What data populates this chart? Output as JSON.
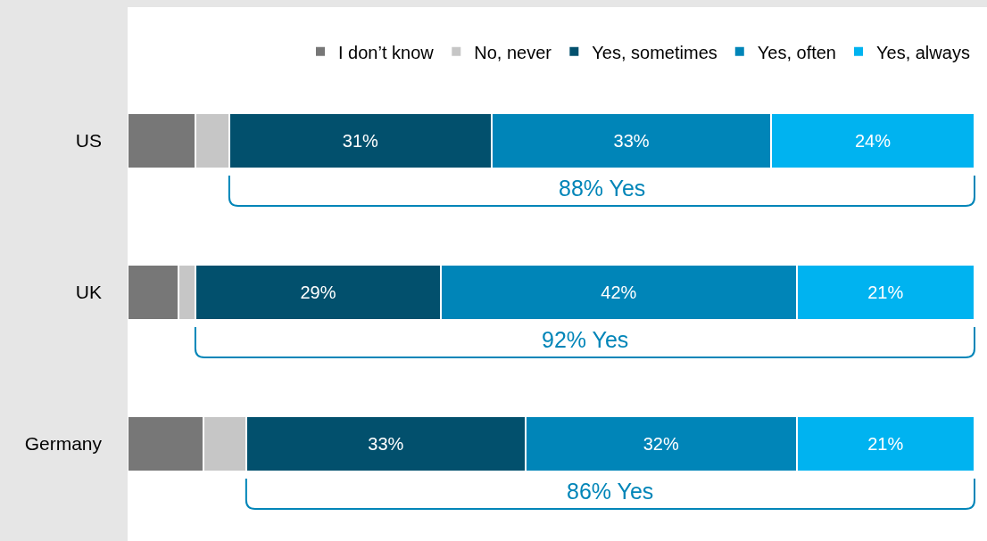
{
  "chart_data": {
    "type": "bar",
    "orientation": "horizontal",
    "stacked": true,
    "legend": "top right",
    "categories": [
      "US",
      "UK",
      "Germany"
    ],
    "series": [
      {
        "name": "I don’t know",
        "color": "#777777",
        "values": [
          8,
          6,
          9
        ],
        "value_labels": [
          null,
          null,
          null
        ]
      },
      {
        "name": "No, never",
        "color": "#c6c6c6",
        "values": [
          4,
          2,
          5
        ],
        "value_labels": [
          null,
          null,
          null
        ]
      },
      {
        "name": "Yes, sometimes",
        "color": "#02506d",
        "values": [
          31,
          29,
          33
        ],
        "value_labels": [
          "31%",
          "29%",
          "33%"
        ]
      },
      {
        "name": "Yes, often",
        "color": "#0085b8",
        "values": [
          33,
          42,
          32
        ],
        "value_labels": [
          "33%",
          "42%",
          "32%"
        ]
      },
      {
        "name": "Yes, always",
        "color": "#00b3f0",
        "values": [
          24,
          21,
          21
        ],
        "value_labels": [
          "24%",
          "21%",
          "21%"
        ]
      }
    ],
    "annotations": [
      "88% Yes",
      "92% Yes",
      "86% Yes"
    ]
  }
}
